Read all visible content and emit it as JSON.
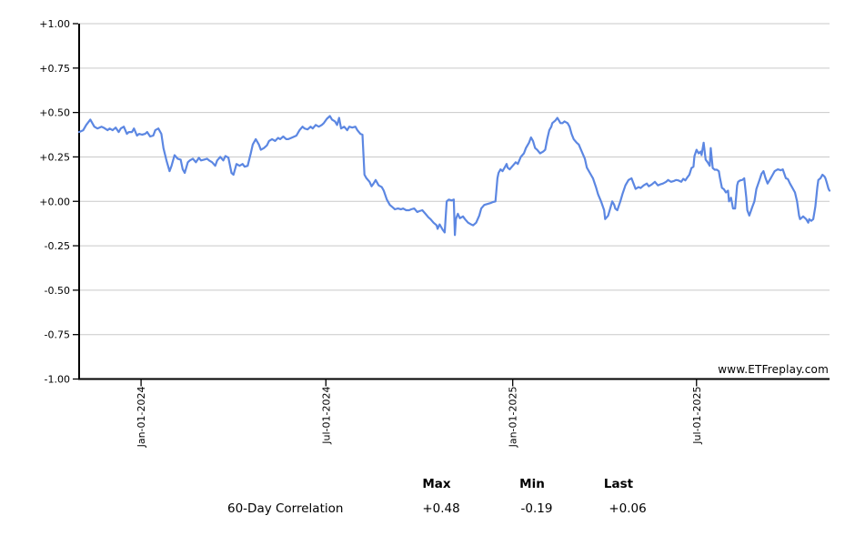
{
  "watermark": "www.ETFreplay.com",
  "chart_data": {
    "type": "line",
    "title": "",
    "series_name": "60-Day Correlation",
    "line_color": "#5c87e2",
    "grid_color": "#c9c9c9",
    "axis_color": "#000000",
    "background": "#ffffff",
    "ylim": [
      -1,
      1
    ],
    "y_tick_labels": [
      "+1.00",
      "+0.75",
      "+0.50",
      "+0.25",
      "+0.00",
      "-0.25",
      "-0.50",
      "-0.75",
      "-1.00"
    ],
    "y_tick_values": [
      1,
      0.75,
      0.5,
      0.25,
      0,
      -0.25,
      -0.5,
      -0.75,
      -1
    ],
    "grid": "horizontal-only",
    "legend": "none",
    "x_axis_unit": "trading days (x_ticks give calendar anchors)",
    "xlim": [
      0,
      739
    ],
    "x_ticks": [
      {
        "day": 61,
        "label": "Jan-01-2024"
      },
      {
        "day": 243,
        "label": "Jul-01-2024"
      },
      {
        "day": 427,
        "label": "Jan-01-2025"
      },
      {
        "day": 608,
        "label": "Jul-01-2025"
      }
    ],
    "stats": {
      "max": 0.48,
      "min": -0.19,
      "last": 0.06
    },
    "points": [
      [
        0,
        0.39
      ],
      [
        4,
        0.4
      ],
      [
        7,
        0.43
      ],
      [
        11,
        0.46
      ],
      [
        13,
        0.44
      ],
      [
        15,
        0.42
      ],
      [
        18,
        0.41
      ],
      [
        22,
        0.42
      ],
      [
        24,
        0.415
      ],
      [
        28,
        0.4
      ],
      [
        30,
        0.41
      ],
      [
        33,
        0.4
      ],
      [
        36,
        0.415
      ],
      [
        39,
        0.39
      ],
      [
        41,
        0.41
      ],
      [
        44,
        0.42
      ],
      [
        47,
        0.38
      ],
      [
        49,
        0.39
      ],
      [
        52,
        0.39
      ],
      [
        54,
        0.41
      ],
      [
        57,
        0.37
      ],
      [
        59,
        0.38
      ],
      [
        62,
        0.375
      ],
      [
        65,
        0.38
      ],
      [
        67,
        0.39
      ],
      [
        70,
        0.365
      ],
      [
        73,
        0.37
      ],
      [
        75,
        0.4
      ],
      [
        78,
        0.41
      ],
      [
        81,
        0.38
      ],
      [
        83,
        0.3
      ],
      [
        86,
        0.23
      ],
      [
        89,
        0.17
      ],
      [
        91,
        0.2
      ],
      [
        94,
        0.26
      ],
      [
        97,
        0.24
      ],
      [
        100,
        0.235
      ],
      [
        102,
        0.18
      ],
      [
        104,
        0.16
      ],
      [
        107,
        0.22
      ],
      [
        109,
        0.23
      ],
      [
        112,
        0.24
      ],
      [
        115,
        0.22
      ],
      [
        118,
        0.245
      ],
      [
        120,
        0.23
      ],
      [
        123,
        0.235
      ],
      [
        126,
        0.24
      ],
      [
        128,
        0.23
      ],
      [
        131,
        0.22
      ],
      [
        134,
        0.2
      ],
      [
        136,
        0.23
      ],
      [
        139,
        0.25
      ],
      [
        142,
        0.23
      ],
      [
        144,
        0.255
      ],
      [
        147,
        0.246
      ],
      [
        150,
        0.16
      ],
      [
        152,
        0.15
      ],
      [
        155,
        0.21
      ],
      [
        158,
        0.2
      ],
      [
        161,
        0.21
      ],
      [
        163,
        0.195
      ],
      [
        166,
        0.2
      ],
      [
        169,
        0.27
      ],
      [
        171,
        0.32
      ],
      [
        174,
        0.35
      ],
      [
        177,
        0.32
      ],
      [
        179,
        0.29
      ],
      [
        182,
        0.3
      ],
      [
        185,
        0.315
      ],
      [
        187,
        0.34
      ],
      [
        190,
        0.35
      ],
      [
        193,
        0.34
      ],
      [
        196,
        0.357
      ],
      [
        198,
        0.35
      ],
      [
        201,
        0.365
      ],
      [
        204,
        0.35
      ],
      [
        206,
        0.35
      ],
      [
        209,
        0.357
      ],
      [
        212,
        0.365
      ],
      [
        214,
        0.37
      ],
      [
        217,
        0.4
      ],
      [
        220,
        0.42
      ],
      [
        222,
        0.41
      ],
      [
        225,
        0.405
      ],
      [
        228,
        0.42
      ],
      [
        230,
        0.41
      ],
      [
        233,
        0.43
      ],
      [
        236,
        0.42
      ],
      [
        239,
        0.43
      ],
      [
        241,
        0.44
      ],
      [
        244,
        0.465
      ],
      [
        247,
        0.48
      ],
      [
        249,
        0.46
      ],
      [
        252,
        0.45
      ],
      [
        254,
        0.43
      ],
      [
        256,
        0.47
      ],
      [
        258,
        0.41
      ],
      [
        261,
        0.42
      ],
      [
        264,
        0.4
      ],
      [
        266,
        0.42
      ],
      [
        269,
        0.415
      ],
      [
        272,
        0.42
      ],
      [
        274,
        0.4
      ],
      [
        277,
        0.38
      ],
      [
        279,
        0.375
      ],
      [
        281,
        0.15
      ],
      [
        283,
        0.13
      ],
      [
        286,
        0.11
      ],
      [
        288,
        0.085
      ],
      [
        290,
        0.1
      ],
      [
        292,
        0.12
      ],
      [
        295,
        0.09
      ],
      [
        298,
        0.08
      ],
      [
        300,
        0.06
      ],
      [
        303,
        0.01
      ],
      [
        306,
        -0.02
      ],
      [
        309,
        -0.035
      ],
      [
        311,
        -0.045
      ],
      [
        314,
        -0.04
      ],
      [
        317,
        -0.045
      ],
      [
        319,
        -0.04
      ],
      [
        322,
        -0.05
      ],
      [
        325,
        -0.05
      ],
      [
        327,
        -0.045
      ],
      [
        330,
        -0.04
      ],
      [
        333,
        -0.06
      ],
      [
        335,
        -0.055
      ],
      [
        338,
        -0.05
      ],
      [
        341,
        -0.07
      ],
      [
        344,
        -0.09
      ],
      [
        346,
        -0.1
      ],
      [
        349,
        -0.12
      ],
      [
        352,
        -0.135
      ],
      [
        353,
        -0.155
      ],
      [
        355,
        -0.13
      ],
      [
        358,
        -0.16
      ],
      [
        360,
        -0.175
      ],
      [
        362,
        0
      ],
      [
        364,
        0.01
      ],
      [
        367,
        0.005
      ],
      [
        369,
        0.01
      ],
      [
        370,
        -0.19
      ],
      [
        371,
        -0.1
      ],
      [
        373,
        -0.07
      ],
      [
        375,
        -0.095
      ],
      [
        378,
        -0.085
      ],
      [
        380,
        -0.1
      ],
      [
        383,
        -0.12
      ],
      [
        386,
        -0.13
      ],
      [
        388,
        -0.135
      ],
      [
        391,
        -0.12
      ],
      [
        394,
        -0.08
      ],
      [
        396,
        -0.04
      ],
      [
        399,
        -0.02
      ],
      [
        402,
        -0.015
      ],
      [
        405,
        -0.01
      ],
      [
        407,
        -0.005
      ],
      [
        410,
        0
      ],
      [
        412,
        0.13
      ],
      [
        413,
        0.16
      ],
      [
        415,
        0.18
      ],
      [
        417,
        0.17
      ],
      [
        419,
        0.19
      ],
      [
        421,
        0.21
      ],
      [
        422,
        0.19
      ],
      [
        424,
        0.18
      ],
      [
        427,
        0.2
      ],
      [
        430,
        0.22
      ],
      [
        432,
        0.21
      ],
      [
        435,
        0.25
      ],
      [
        438,
        0.27
      ],
      [
        440,
        0.3
      ],
      [
        443,
        0.33
      ],
      [
        445,
        0.36
      ],
      [
        447,
        0.34
      ],
      [
        449,
        0.3
      ],
      [
        451,
        0.29
      ],
      [
        454,
        0.27
      ],
      [
        457,
        0.28
      ],
      [
        459,
        0.29
      ],
      [
        461,
        0.35
      ],
      [
        463,
        0.4
      ],
      [
        465,
        0.42
      ],
      [
        466,
        0.44
      ],
      [
        469,
        0.455
      ],
      [
        471,
        0.47
      ],
      [
        474,
        0.44
      ],
      [
        476,
        0.44
      ],
      [
        478,
        0.45
      ],
      [
        481,
        0.44
      ],
      [
        483,
        0.42
      ],
      [
        485,
        0.38
      ],
      [
        487,
        0.35
      ],
      [
        490,
        0.33
      ],
      [
        492,
        0.32
      ],
      [
        495,
        0.28
      ],
      [
        498,
        0.24
      ],
      [
        500,
        0.19
      ],
      [
        503,
        0.16
      ],
      [
        506,
        0.13
      ],
      [
        509,
        0.08
      ],
      [
        511,
        0.04
      ],
      [
        514,
        0
      ],
      [
        517,
        -0.05
      ],
      [
        518,
        -0.1
      ],
      [
        521,
        -0.08
      ],
      [
        523,
        -0.04
      ],
      [
        525,
        0
      ],
      [
        527,
        -0.02
      ],
      [
        528,
        -0.04
      ],
      [
        530,
        -0.05
      ],
      [
        533,
        0
      ],
      [
        535,
        0.04
      ],
      [
        538,
        0.09
      ],
      [
        541,
        0.12
      ],
      [
        544,
        0.13
      ],
      [
        546,
        0.1
      ],
      [
        548,
        0.07
      ],
      [
        551,
        0.08
      ],
      [
        553,
        0.075
      ],
      [
        556,
        0.09
      ],
      [
        559,
        0.1
      ],
      [
        561,
        0.085
      ],
      [
        564,
        0.095
      ],
      [
        567,
        0.11
      ],
      [
        570,
        0.09
      ],
      [
        572,
        0.095
      ],
      [
        575,
        0.1
      ],
      [
        578,
        0.11
      ],
      [
        580,
        0.12
      ],
      [
        583,
        0.11
      ],
      [
        586,
        0.115
      ],
      [
        588,
        0.12
      ],
      [
        590,
        0.118
      ],
      [
        593,
        0.11
      ],
      [
        595,
        0.127
      ],
      [
        597,
        0.118
      ],
      [
        599,
        0.135
      ],
      [
        601,
        0.15
      ],
      [
        603,
        0.187
      ],
      [
        605,
        0.195
      ],
      [
        606,
        0.255
      ],
      [
        608,
        0.29
      ],
      [
        610,
        0.27
      ],
      [
        612,
        0.28
      ],
      [
        613,
        0.26
      ],
      [
        615,
        0.33
      ],
      [
        617,
        0.235
      ],
      [
        619,
        0.22
      ],
      [
        621,
        0.2
      ],
      [
        622,
        0.3
      ],
      [
        624,
        0.187
      ],
      [
        626,
        0.178
      ],
      [
        628,
        0.178
      ],
      [
        630,
        0.17
      ],
      [
        631,
        0.135
      ],
      [
        633,
        0.076
      ],
      [
        635,
        0.068
      ],
      [
        637,
        0.05
      ],
      [
        639,
        0.06
      ],
      [
        640,
        0
      ],
      [
        642,
        0.02
      ],
      [
        644,
        -0.04
      ],
      [
        646,
        -0.04
      ],
      [
        648,
        0.09
      ],
      [
        649,
        0.11
      ],
      [
        651,
        0.118
      ],
      [
        653,
        0.12
      ],
      [
        655,
        0.13
      ],
      [
        657,
        0.02
      ],
      [
        658,
        -0.05
      ],
      [
        660,
        -0.08
      ],
      [
        663,
        -0.03
      ],
      [
        665,
        0
      ],
      [
        667,
        0.07
      ],
      [
        670,
        0.12
      ],
      [
        672,
        0.155
      ],
      [
        674,
        0.17
      ],
      [
        676,
        0.13
      ],
      [
        678,
        0.1
      ],
      [
        681,
        0.13
      ],
      [
        683,
        0.15
      ],
      [
        685,
        0.17
      ],
      [
        688,
        0.18
      ],
      [
        691,
        0.175
      ],
      [
        693,
        0.18
      ],
      [
        696,
        0.13
      ],
      [
        698,
        0.125
      ],
      [
        700,
        0.1
      ],
      [
        702,
        0.08
      ],
      [
        705,
        0.05
      ],
      [
        707,
        0
      ],
      [
        709,
        -0.08
      ],
      [
        710,
        -0.1
      ],
      [
        713,
        -0.085
      ],
      [
        716,
        -0.1
      ],
      [
        718,
        -0.12
      ],
      [
        719,
        -0.1
      ],
      [
        721,
        -0.11
      ],
      [
        723,
        -0.1
      ],
      [
        725,
        -0.03
      ],
      [
        727,
        0.08
      ],
      [
        728,
        0.12
      ],
      [
        730,
        0.13
      ],
      [
        732,
        0.15
      ],
      [
        734,
        0.14
      ],
      [
        735,
        0.13
      ],
      [
        736,
        0.11
      ],
      [
        738,
        0.07
      ],
      [
        739,
        0.06
      ]
    ]
  },
  "stats_table": {
    "columns": [
      "Max",
      "Min",
      "Last"
    ],
    "rows": [
      {
        "label": "60-Day Correlation",
        "max": "+0.48",
        "min": "-0.19",
        "last": "+0.06"
      }
    ]
  }
}
